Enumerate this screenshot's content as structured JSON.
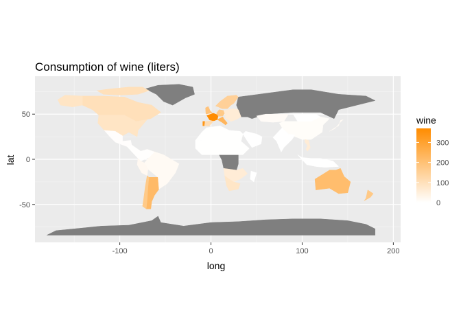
{
  "chart_data": {
    "type": "choropleth-map",
    "title": "Consumption of wine (liters)",
    "xlabel": "long",
    "ylabel": "lat",
    "xlim": [
      -193,
      208
    ],
    "ylim": [
      -92,
      92
    ],
    "x_ticks": [
      -100,
      0,
      100,
      200
    ],
    "x_tick_labels": [
      "-100",
      "0",
      "100",
      "200"
    ],
    "x_minor_ticks": [
      -150,
      -50,
      50,
      150
    ],
    "y_ticks": [
      -50,
      0,
      50
    ],
    "y_tick_labels": [
      "-50",
      "0",
      "50"
    ],
    "y_minor_ticks": [
      -75,
      -25,
      25,
      75
    ],
    "grid": true,
    "panel_background": "#ebebeb",
    "na_color": "#7f7f7f",
    "legend": {
      "title": "wine",
      "position": "right",
      "low_color": "#ffffff",
      "high_color": "#ff8c00",
      "limits": [
        0,
        370
      ],
      "breaks": [
        0,
        100,
        200,
        300
      ],
      "break_labels": [
        "0",
        "100",
        "200",
        "300"
      ]
    },
    "regions": [
      {
        "name": "Greenland",
        "value": null
      },
      {
        "name": "Russia",
        "value": null
      },
      {
        "name": "Central Africa",
        "value": null
      },
      {
        "name": "Antarctica",
        "value": null
      },
      {
        "name": "France",
        "value": 370
      },
      {
        "name": "Portugal",
        "value": 339
      },
      {
        "name": "Argentina",
        "value": 221
      },
      {
        "name": "Australia",
        "value": 212
      },
      {
        "name": "Spain",
        "value": 112
      },
      {
        "name": "Germany",
        "value": 175
      },
      {
        "name": "Italy",
        "value": 237
      },
      {
        "name": "South Africa",
        "value": 81
      },
      {
        "name": "Canada",
        "value": 100
      },
      {
        "name": "United States",
        "value": 84
      },
      {
        "name": "Chile",
        "value": 172
      },
      {
        "name": "Brazil",
        "value": 16
      },
      {
        "name": "Mexico",
        "value": 5
      },
      {
        "name": "China",
        "value": 8
      },
      {
        "name": "India",
        "value": 0
      },
      {
        "name": "Kazakhstan",
        "value": 12
      },
      {
        "name": "Saudi Arabia",
        "value": 0
      },
      {
        "name": "North Africa",
        "value": 1
      },
      {
        "name": "Sahel",
        "value": 1
      },
      {
        "name": "Scandinavia",
        "value": 150
      },
      {
        "name": "Vietnam",
        "value": 60
      },
      {
        "name": "Mongolia",
        "value": 0
      },
      {
        "name": "Japan",
        "value": 16
      },
      {
        "name": "Alaska",
        "value": 84
      },
      {
        "name": "New Zealand",
        "value": 175
      },
      {
        "name": "Madagascar",
        "value": 0
      },
      {
        "name": "Colombia",
        "value": 3
      },
      {
        "name": "Peru",
        "value": 21
      },
      {
        "name": "Indonesia",
        "value": 0
      },
      {
        "name": "Arctic Canada",
        "value": 100
      },
      {
        "name": "Eastern Europe",
        "value": 60
      },
      {
        "name": "UK",
        "value": 195
      },
      {
        "name": "Southern Africa",
        "value": 60
      }
    ]
  }
}
